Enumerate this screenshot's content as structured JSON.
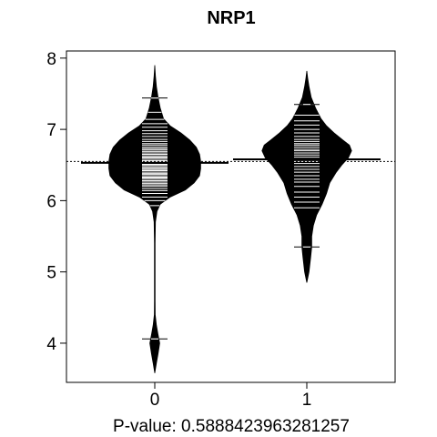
{
  "chart_data": {
    "type": "beanplot",
    "title": "NRP1",
    "xlabel": "P-value: 0.5888423963281257",
    "ylabel": "",
    "categories": [
      "0",
      "1"
    ],
    "ylim": [
      3.45,
      8.1
    ],
    "yticks": [
      4,
      5,
      6,
      7,
      8
    ],
    "overall_mean": 6.55,
    "grid": false,
    "legend": "none",
    "beans": [
      {
        "category": "0",
        "mean": 6.53,
        "range": [
          3.58,
          7.9
        ],
        "density": [
          [
            3.58,
            0.0
          ],
          [
            3.72,
            0.015
          ],
          [
            3.85,
            0.03
          ],
          [
            4.0,
            0.045
          ],
          [
            4.12,
            0.03
          ],
          [
            4.25,
            0.015
          ],
          [
            4.4,
            0.004
          ],
          [
            4.6,
            0.003
          ],
          [
            5.0,
            0.003
          ],
          [
            5.4,
            0.003
          ],
          [
            5.7,
            0.006
          ],
          [
            5.85,
            0.02
          ],
          [
            5.95,
            0.05
          ],
          [
            6.05,
            0.14
          ],
          [
            6.15,
            0.28
          ],
          [
            6.25,
            0.36
          ],
          [
            6.35,
            0.41
          ],
          [
            6.45,
            0.42
          ],
          [
            6.55,
            0.42
          ],
          [
            6.65,
            0.41
          ],
          [
            6.75,
            0.38
          ],
          [
            6.85,
            0.32
          ],
          [
            6.95,
            0.24
          ],
          [
            7.05,
            0.14
          ],
          [
            7.15,
            0.08
          ],
          [
            7.3,
            0.05
          ],
          [
            7.45,
            0.03
          ],
          [
            7.6,
            0.015
          ],
          [
            7.75,
            0.006
          ],
          [
            7.9,
            0.0
          ]
        ],
        "observations": [
          4.06,
          5.93,
          6.0,
          6.05,
          6.1,
          6.14,
          6.17,
          6.2,
          6.22,
          6.24,
          6.26,
          6.28,
          6.3,
          6.32,
          6.33,
          6.35,
          6.37,
          6.38,
          6.4,
          6.42,
          6.43,
          6.45,
          6.46,
          6.48,
          6.5,
          6.51,
          6.53,
          6.55,
          6.56,
          6.58,
          6.6,
          6.61,
          6.63,
          6.65,
          6.67,
          6.69,
          6.71,
          6.73,
          6.75,
          6.78,
          6.8,
          6.83,
          6.86,
          6.9,
          6.94,
          6.98,
          7.03,
          7.08,
          7.14,
          7.24,
          7.44
        ],
        "long_marks": [
          7.44,
          4.06
        ]
      },
      {
        "category": "1",
        "mean": 6.58,
        "range": [
          4.85,
          7.82
        ],
        "density": [
          [
            4.85,
            0.0
          ],
          [
            5.0,
            0.02
          ],
          [
            5.2,
            0.035
          ],
          [
            5.35,
            0.045
          ],
          [
            5.5,
            0.045
          ],
          [
            5.65,
            0.06
          ],
          [
            5.8,
            0.09
          ],
          [
            5.95,
            0.14
          ],
          [
            6.1,
            0.18
          ],
          [
            6.25,
            0.21
          ],
          [
            6.4,
            0.27
          ],
          [
            6.5,
            0.32
          ],
          [
            6.6,
            0.38
          ],
          [
            6.7,
            0.41
          ],
          [
            6.78,
            0.39
          ],
          [
            6.85,
            0.33
          ],
          [
            6.95,
            0.25
          ],
          [
            7.05,
            0.18
          ],
          [
            7.15,
            0.13
          ],
          [
            7.3,
            0.08
          ],
          [
            7.45,
            0.04
          ],
          [
            7.6,
            0.02
          ],
          [
            7.72,
            0.008
          ],
          [
            7.82,
            0.0
          ]
        ],
        "observations": [
          5.35,
          5.9,
          5.98,
          6.05,
          6.12,
          6.2,
          6.26,
          6.3,
          6.35,
          6.4,
          6.44,
          6.48,
          6.52,
          6.55,
          6.58,
          6.61,
          6.64,
          6.67,
          6.7,
          6.72,
          6.75,
          6.78,
          6.8,
          6.83,
          6.86,
          6.9,
          6.95,
          7.0,
          7.06,
          7.12,
          7.2,
          7.35
        ],
        "long_marks": [
          7.35,
          5.35
        ]
      }
    ]
  }
}
